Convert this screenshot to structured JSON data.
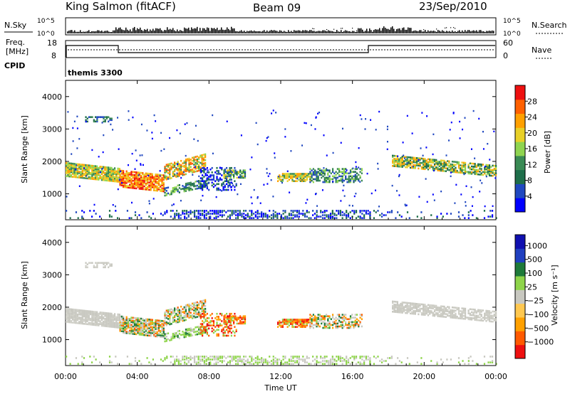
{
  "header": {
    "station": "King Salmon (fitACF)",
    "beam": "Beam 09",
    "date": "23/Sep/2010"
  },
  "side_labels": {
    "nsky": "N.Sky",
    "nsearch": "N.Search",
    "freq_line1": "Freq.",
    "freq_line2": "[MHz]",
    "nave": "Nave",
    "cpid": "CPID"
  },
  "cpid_value": "themis 3300",
  "noise_ticks": [
    "10^5",
    "10^0"
  ],
  "freq_ticks": [
    "18",
    "8"
  ],
  "nave_ticks": [
    "60",
    "0"
  ],
  "colors": {
    "power_scale": [
      "#0000ff",
      "#2048c0",
      "#1e6e4a",
      "#3a8a54",
      "#8fd450",
      "#e8d028",
      "#ffa000",
      "#ff6000",
      "#ee1010"
    ],
    "velocity_scale": [
      "#ee1010",
      "#ff5a00",
      "#ffa000",
      "#ffc850",
      "#c8c8c0",
      "#8ed44a",
      "#1e7a3a",
      "#2040c0",
      "#1010b0"
    ]
  },
  "chart_data": [
    {
      "type": "heatmap",
      "panel": "power",
      "ylabel": "Slant Range [km]",
      "ylim": [
        200,
        4500
      ],
      "yticks": [
        "1000",
        "2000",
        "3000",
        "4000"
      ],
      "xlim_hours": [
        0,
        24
      ],
      "colorbar_label": "Power [dB]",
      "colorbar_ticks": [
        "4",
        "8",
        "12",
        "16",
        "20",
        "24",
        "28"
      ]
    },
    {
      "type": "heatmap",
      "panel": "velocity",
      "ylabel": "Slant Range [km]",
      "ylim": [
        200,
        4500
      ],
      "yticks": [
        "1000",
        "2000",
        "3000",
        "4000"
      ],
      "xlim_hours": [
        0,
        24
      ],
      "xlabel": "Time UT",
      "xticks": [
        "00:00",
        "04:00",
        "08:00",
        "12:00",
        "16:00",
        "20:00",
        "00:00"
      ],
      "colorbar_label": "Velocity [m s⁻¹]",
      "colorbar_ticks": [
        "1000",
        "500",
        "100",
        "25",
        "−25",
        "−100",
        "−500",
        "−1000"
      ]
    }
  ]
}
